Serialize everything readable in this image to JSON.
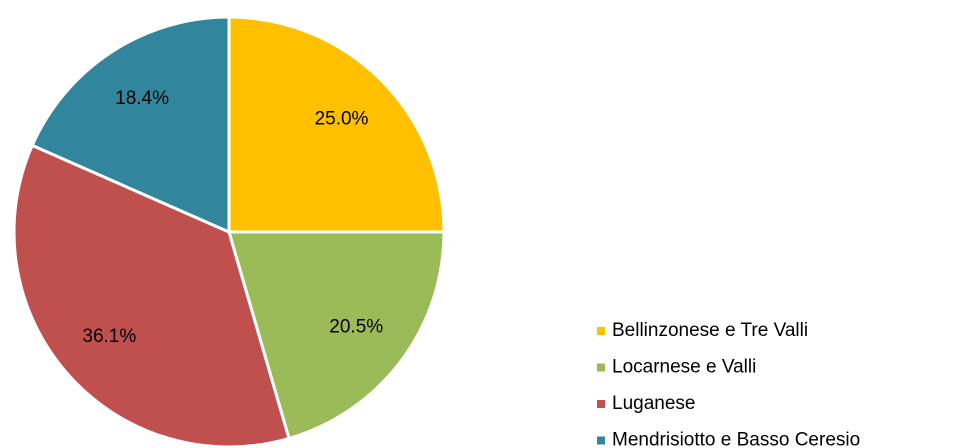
{
  "chart_data": {
    "type": "pie",
    "categories": [
      "Bellinzonese e Tre Valli",
      "Locarnese e Valli",
      "Luganese",
      "Mendrisiotto e Basso Ceresio"
    ],
    "values": [
      25.0,
      20.5,
      36.1,
      18.4
    ],
    "value_labels": [
      "25.0%",
      "20.5%",
      "36.1%",
      "18.4%"
    ],
    "colors": [
      "#ffc000",
      "#9bbb59",
      "#c0504d",
      "#31859c"
    ],
    "legend": "right"
  }
}
